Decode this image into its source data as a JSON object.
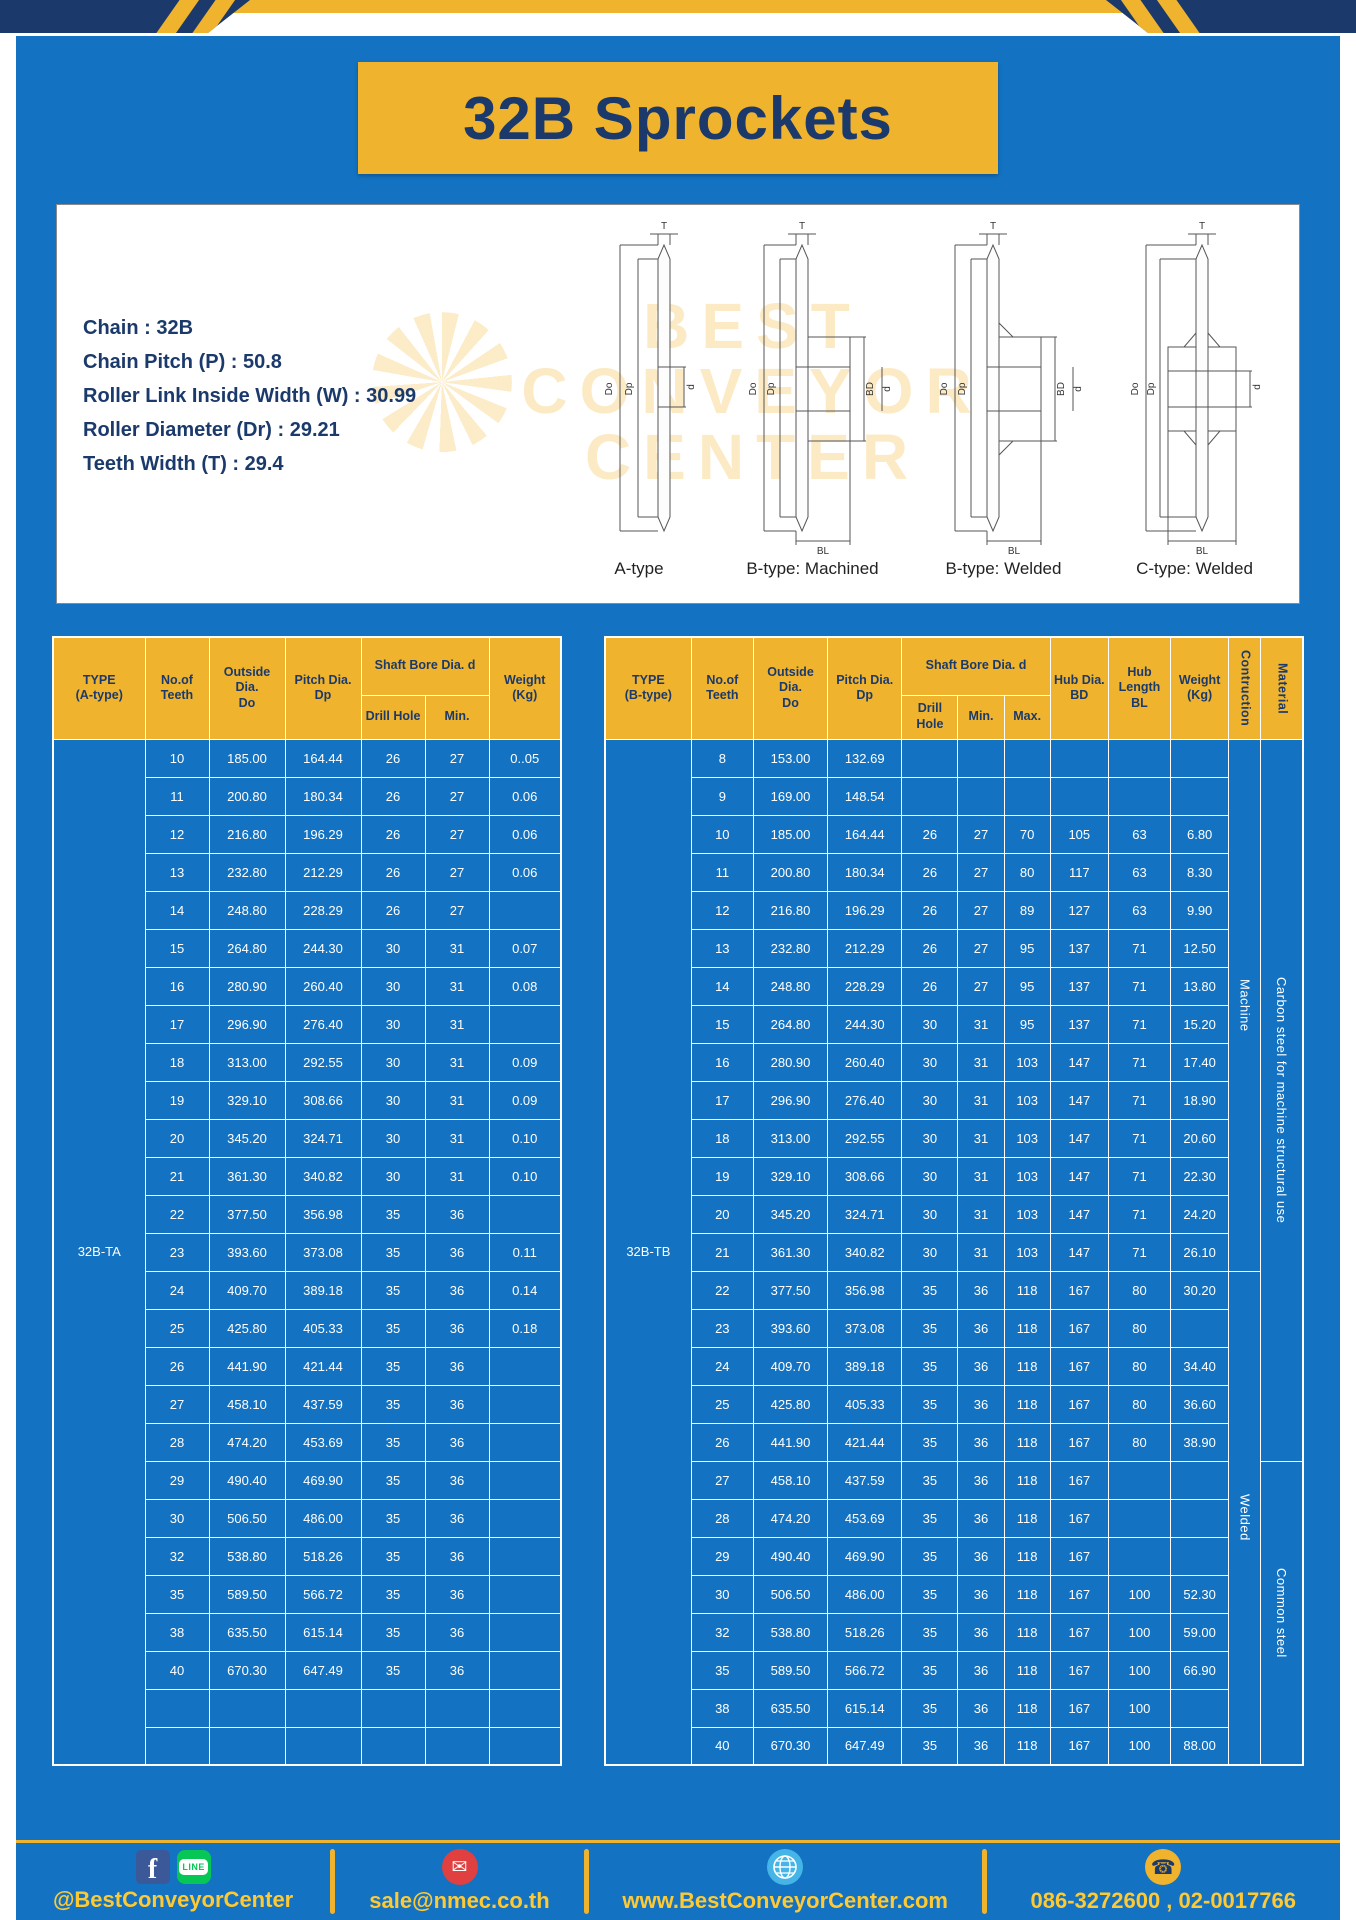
{
  "page": {
    "title": "32B Sprockets"
  },
  "colors": {
    "yellow": "#F0B32E",
    "blue": "#1373C2",
    "navy": "#1B3A6B",
    "footer_text": "#FFC933",
    "white": "#FFFFFF"
  },
  "specs": {
    "lines": [
      "Chain : 32B",
      "Chain Pitch (P) : 50.8",
      "Roller Link Inside Width (W) : 30.99",
      "Roller Diameter (Dr) : 29.21",
      "Teeth Width (T) : 29.4"
    ]
  },
  "diagram": {
    "watermark_lines": [
      "BEST",
      "CONVEYOR",
      "CENTER"
    ],
    "captions": [
      "A-type",
      "B-type: Machined",
      "B-type: Welded",
      "C-type: Welded"
    ],
    "dims": {
      "t": "T",
      "dia_o": "Do",
      "dia_p": "Dp",
      "d": "d",
      "bd": "BD",
      "bl": "BL"
    }
  },
  "table_a": {
    "headers": {
      "type": "TYPE\n(A-type)",
      "teeth": "No.of\nTeeth",
      "outside": "Outside\nDia.\nDo",
      "pitch": "Pitch Dia.\nDp",
      "shaft": "Shaft Bore Dia. d",
      "drill": "Drill Hole",
      "min": "Min.",
      "weight": "Weight\n(Kg)"
    },
    "type_value": "32B-TA",
    "rows": [
      [
        "10",
        "185.00",
        "164.44",
        "26",
        "27",
        "0..05"
      ],
      [
        "11",
        "200.80",
        "180.34",
        "26",
        "27",
        "0.06"
      ],
      [
        "12",
        "216.80",
        "196.29",
        "26",
        "27",
        "0.06"
      ],
      [
        "13",
        "232.80",
        "212.29",
        "26",
        "27",
        "0.06"
      ],
      [
        "14",
        "248.80",
        "228.29",
        "26",
        "27",
        ""
      ],
      [
        "15",
        "264.80",
        "244.30",
        "30",
        "31",
        "0.07"
      ],
      [
        "16",
        "280.90",
        "260.40",
        "30",
        "31",
        "0.08"
      ],
      [
        "17",
        "296.90",
        "276.40",
        "30",
        "31",
        ""
      ],
      [
        "18",
        "313.00",
        "292.55",
        "30",
        "31",
        "0.09"
      ],
      [
        "19",
        "329.10",
        "308.66",
        "30",
        "31",
        "0.09"
      ],
      [
        "20",
        "345.20",
        "324.71",
        "30",
        "31",
        "0.10"
      ],
      [
        "21",
        "361.30",
        "340.82",
        "30",
        "31",
        "0.10"
      ],
      [
        "22",
        "377.50",
        "356.98",
        "35",
        "36",
        ""
      ],
      [
        "23",
        "393.60",
        "373.08",
        "35",
        "36",
        "0.11"
      ],
      [
        "24",
        "409.70",
        "389.18",
        "35",
        "36",
        "0.14"
      ],
      [
        "25",
        "425.80",
        "405.33",
        "35",
        "36",
        "0.18"
      ],
      [
        "26",
        "441.90",
        "421.44",
        "35",
        "36",
        ""
      ],
      [
        "27",
        "458.10",
        "437.59",
        "35",
        "36",
        ""
      ],
      [
        "28",
        "474.20",
        "453.69",
        "35",
        "36",
        ""
      ],
      [
        "29",
        "490.40",
        "469.90",
        "35",
        "36",
        ""
      ],
      [
        "30",
        "506.50",
        "486.00",
        "35",
        "36",
        ""
      ],
      [
        "32",
        "538.80",
        "518.26",
        "35",
        "36",
        ""
      ],
      [
        "35",
        "589.50",
        "566.72",
        "35",
        "36",
        ""
      ],
      [
        "38",
        "635.50",
        "615.14",
        "35",
        "36",
        ""
      ],
      [
        "40",
        "670.30",
        "647.49",
        "35",
        "36",
        ""
      ],
      [
        "",
        "",
        "",
        "",
        "",
        ""
      ],
      [
        "",
        "",
        "",
        "",
        "",
        ""
      ]
    ]
  },
  "table_b": {
    "headers": {
      "type": "TYPE\n(B-type)",
      "teeth": "No.of\nTeeth",
      "outside": "Outside\nDia.\nDo",
      "pitch": "Pitch Dia.\nDp",
      "shaft": "Shaft Bore Dia. d",
      "drill": "Drill Hole",
      "min": "Min.",
      "max": "Max.",
      "hub_dia": "Hub Dia.\nBD",
      "hub_len": "Hub\nLength\nBL",
      "weight": "Weight\n(Kg)",
      "construction": "Contruction",
      "material": "Material"
    },
    "type_value": "32B-TB",
    "rows": [
      [
        "8",
        "153.00",
        "132.69",
        "",
        "",
        "",
        "",
        "",
        ""
      ],
      [
        "9",
        "169.00",
        "148.54",
        "",
        "",
        "",
        "",
        "",
        ""
      ],
      [
        "10",
        "185.00",
        "164.44",
        "26",
        "27",
        "70",
        "105",
        "63",
        "6.80"
      ],
      [
        "11",
        "200.80",
        "180.34",
        "26",
        "27",
        "80",
        "117",
        "63",
        "8.30"
      ],
      [
        "12",
        "216.80",
        "196.29",
        "26",
        "27",
        "89",
        "127",
        "63",
        "9.90"
      ],
      [
        "13",
        "232.80",
        "212.29",
        "26",
        "27",
        "95",
        "137",
        "71",
        "12.50"
      ],
      [
        "14",
        "248.80",
        "228.29",
        "26",
        "27",
        "95",
        "137",
        "71",
        "13.80"
      ],
      [
        "15",
        "264.80",
        "244.30",
        "30",
        "31",
        "95",
        "137",
        "71",
        "15.20"
      ],
      [
        "16",
        "280.90",
        "260.40",
        "30",
        "31",
        "103",
        "147",
        "71",
        "17.40"
      ],
      [
        "17",
        "296.90",
        "276.40",
        "30",
        "31",
        "103",
        "147",
        "71",
        "18.90"
      ],
      [
        "18",
        "313.00",
        "292.55",
        "30",
        "31",
        "103",
        "147",
        "71",
        "20.60"
      ],
      [
        "19",
        "329.10",
        "308.66",
        "30",
        "31",
        "103",
        "147",
        "71",
        "22.30"
      ],
      [
        "20",
        "345.20",
        "324.71",
        "30",
        "31",
        "103",
        "147",
        "71",
        "24.20"
      ],
      [
        "21",
        "361.30",
        "340.82",
        "30",
        "31",
        "103",
        "147",
        "71",
        "26.10"
      ],
      [
        "22",
        "377.50",
        "356.98",
        "35",
        "36",
        "118",
        "167",
        "80",
        "30.20"
      ],
      [
        "23",
        "393.60",
        "373.08",
        "35",
        "36",
        "118",
        "167",
        "80",
        ""
      ],
      [
        "24",
        "409.70",
        "389.18",
        "35",
        "36",
        "118",
        "167",
        "80",
        "34.40"
      ],
      [
        "25",
        "425.80",
        "405.33",
        "35",
        "36",
        "118",
        "167",
        "80",
        "36.60"
      ],
      [
        "26",
        "441.90",
        "421.44",
        "35",
        "36",
        "118",
        "167",
        "80",
        "38.90"
      ],
      [
        "27",
        "458.10",
        "437.59",
        "35",
        "36",
        "118",
        "167",
        "",
        ""
      ],
      [
        "28",
        "474.20",
        "453.69",
        "35",
        "36",
        "118",
        "167",
        "",
        ""
      ],
      [
        "29",
        "490.40",
        "469.90",
        "35",
        "36",
        "118",
        "167",
        "",
        ""
      ],
      [
        "30",
        "506.50",
        "486.00",
        "35",
        "36",
        "118",
        "167",
        "100",
        "52.30"
      ],
      [
        "32",
        "538.80",
        "518.26",
        "35",
        "36",
        "118",
        "167",
        "100",
        "59.00"
      ],
      [
        "35",
        "589.50",
        "566.72",
        "35",
        "36",
        "118",
        "167",
        "100",
        "66.90"
      ],
      [
        "38",
        "635.50",
        "615.14",
        "35",
        "36",
        "118",
        "167",
        "100",
        ""
      ],
      [
        "40",
        "670.30",
        "647.49",
        "35",
        "36",
        "118",
        "167",
        "100",
        "88.00"
      ]
    ],
    "merges": [
      {
        "row": 0,
        "span": 14,
        "text": "Machine",
        "name": "construction-cell"
      },
      {
        "row": 0,
        "span": 19,
        "text": "Carbon steel for machine structural use",
        "name": "material-cell"
      },
      {
        "row": 14,
        "span": 13,
        "text": "Welded",
        "name": "construction-cell"
      },
      {
        "row": 19,
        "span": 8,
        "text": "Common steel",
        "name": "material-cell"
      }
    ]
  },
  "footer": {
    "facebook_letter": "f",
    "line_badge": "LINE",
    "social_handle": "@BestConveyorCenter",
    "email": "sale@nmec.co.th",
    "website": "www.BestConveyorCenter.com",
    "phone": "086-3272600 , 02-0017766",
    "mail_glyph": "✉",
    "phone_glyph": "☎"
  }
}
